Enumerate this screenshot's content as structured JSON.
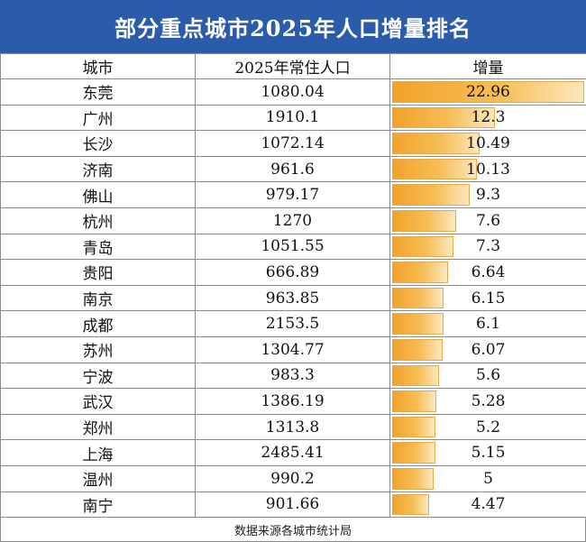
{
  "title": "部分重点城市2025年人口增量排名",
  "footer": "数据来源各城市统计局",
  "colors": {
    "header_bg": "#2b5ca9",
    "bar": "#f2a22a"
  },
  "chart_data": {
    "type": "table",
    "columns": [
      "城市",
      "2025年常住人口",
      "增量"
    ],
    "bar_max": 22.96,
    "rows": [
      {
        "city": "东莞",
        "population": "1080.04",
        "increase": "22.96"
      },
      {
        "city": "广州",
        "population": "1910.1",
        "increase": "12.3"
      },
      {
        "city": "长沙",
        "population": "1072.14",
        "increase": "10.49"
      },
      {
        "city": "济南",
        "population": "961.6",
        "increase": "10.13"
      },
      {
        "city": "佛山",
        "population": "979.17",
        "increase": "9.3"
      },
      {
        "city": "杭州",
        "population": "1270",
        "increase": "7.6"
      },
      {
        "city": "青岛",
        "population": "1051.55",
        "increase": "7.3"
      },
      {
        "city": "贵阳",
        "population": "666.89",
        "increase": "6.64"
      },
      {
        "city": "南京",
        "population": "963.85",
        "increase": "6.15"
      },
      {
        "city": "成都",
        "population": "2153.5",
        "increase": "6.1"
      },
      {
        "city": "苏州",
        "population": "1304.77",
        "increase": "6.07"
      },
      {
        "city": "宁波",
        "population": "983.3",
        "increase": "5.6"
      },
      {
        "city": "武汉",
        "population": "1386.19",
        "increase": "5.28"
      },
      {
        "city": "郑州",
        "population": "1313.8",
        "increase": "5.2"
      },
      {
        "city": "上海",
        "population": "2485.41",
        "increase": "5.15"
      },
      {
        "city": "温州",
        "population": "990.2",
        "increase": "5"
      },
      {
        "city": "南宁",
        "population": "901.66",
        "increase": "4.47"
      }
    ]
  }
}
